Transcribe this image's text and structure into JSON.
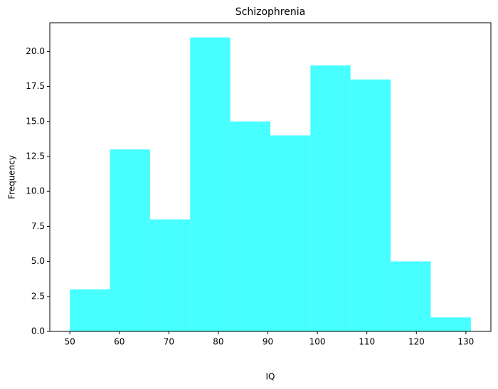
{
  "chart_data": {
    "type": "histogram",
    "title": "Schizophrenia",
    "x_label": "IQ",
    "y_label": "Frequency",
    "bins": [
      50,
      58.1,
      66.2,
      74.3,
      82.4,
      90.5,
      98.6,
      106.7,
      114.8,
      122.9,
      131
    ],
    "values": [
      3,
      13,
      8,
      21,
      15,
      14,
      19,
      18,
      5,
      1
    ],
    "color": "#47ffff",
    "xlim": [
      45.95,
      135.05
    ],
    "xticks": [
      50,
      60,
      70,
      80,
      90,
      100,
      110,
      120,
      130
    ],
    "ylim": [
      0,
      22.05
    ],
    "yticks": [
      {
        "value": 0,
        "label": "0.0"
      },
      {
        "value": 2.5,
        "label": "2.5"
      },
      {
        "value": 5,
        "label": "5.0"
      },
      {
        "value": 7.5,
        "label": "7.5"
      },
      {
        "value": 10,
        "label": "10.0"
      },
      {
        "value": 12.5,
        "label": "12.5"
      },
      {
        "value": 15,
        "label": "15.0"
      },
      {
        "value": 17.5,
        "label": "17.5"
      },
      {
        "value": 20,
        "label": "20.0"
      }
    ]
  }
}
